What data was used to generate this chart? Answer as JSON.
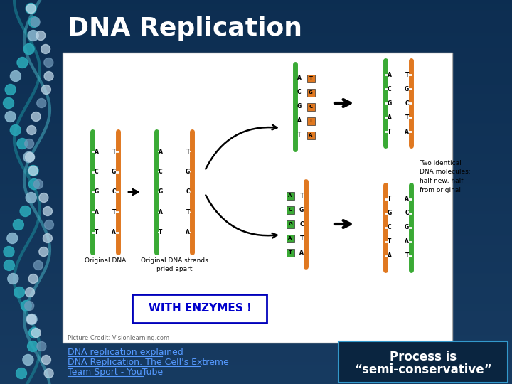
{
  "title": "DNA Replication",
  "title_color": "#FFFFFF",
  "title_fontsize": 26,
  "slide_bg": "#0d3a5c",
  "main_image_bg": "#FFFFFF",
  "with_enzymes_text": "WITH ENZYMES !",
  "with_enzymes_color": "#0000CC",
  "picture_credit": "Picture Credit: Visionlearning.com",
  "link_text_1": "DNA replication explained",
  "link_text_2": "DNA Replication: The Cell's Extreme",
  "link_text_3": "Team Sport - YouTube",
  "link_color": "#5599FF",
  "process_text_1": "Process is",
  "process_text_2": "“semi-conservative”",
  "process_text_color": "#FFFFFF",
  "process_box_border": "#3399CC",
  "green": "#3aaa35",
  "orange": "#e07820",
  "labels_l": [
    "A",
    "C",
    "G",
    "A",
    "T"
  ],
  "labels_r": [
    "T",
    "G",
    "C",
    "T",
    "A"
  ]
}
